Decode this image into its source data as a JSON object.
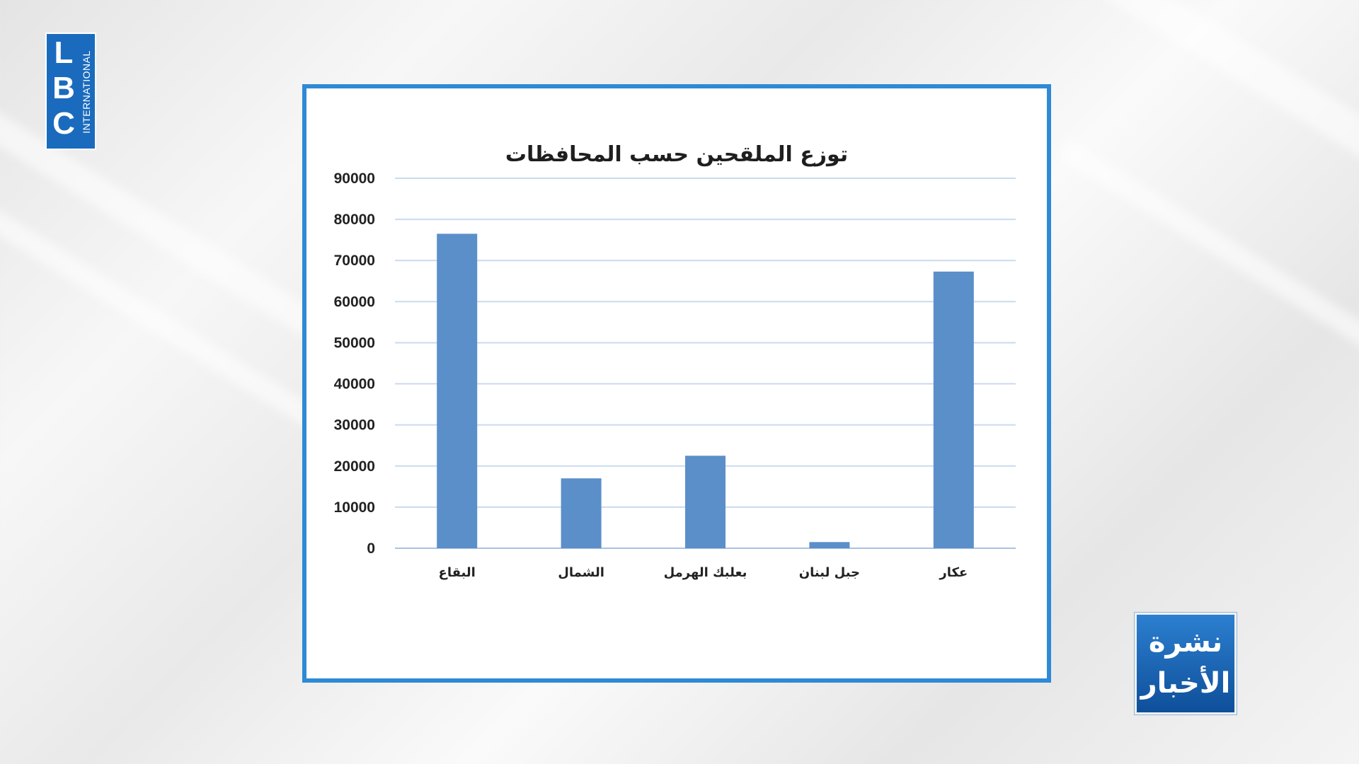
{
  "logo": {
    "letters": [
      "L",
      "B",
      "C"
    ],
    "subtitle": "INTERNATIONAL"
  },
  "news_badge": {
    "line1": "نشرة",
    "line2": "الأخبار"
  },
  "colors": {
    "frame": "#2e8ad6",
    "bar": "#5b8fc9",
    "grid": "#c9dbef",
    "logo": "#1a6bbd"
  },
  "chart_data": {
    "type": "bar",
    "title": "توزع الملقحين حسب المحافظات",
    "categories": [
      "البقاع",
      "الشمال",
      "بعلبك الهرمل",
      "جبل لبنان",
      "عكار"
    ],
    "values": [
      76500,
      17000,
      22500,
      1500,
      67300
    ],
    "y_ticks": [
      "0",
      "10000",
      "20000",
      "30000",
      "40000",
      "50000",
      "60000",
      "70000",
      "80000",
      "90000"
    ],
    "ylim": [
      0,
      90000
    ],
    "grid": true,
    "legend": false
  }
}
